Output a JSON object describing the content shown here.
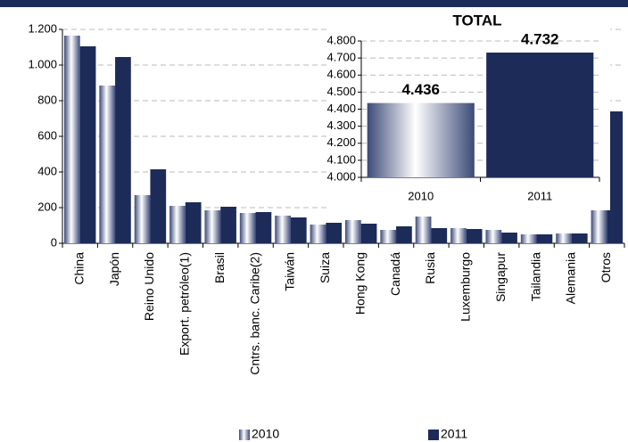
{
  "chart_data": [
    {
      "type": "bar",
      "categories": [
        "China",
        "Japón",
        "Reino Unido",
        "Export. petróleo(1)",
        "Brasil",
        "Cntrs. banc. Caribe(2)",
        "Taiwán",
        "Suiza",
        "Hong Kong",
        "Canadá",
        "Rusia",
        "Luxemburgo",
        "Singapur",
        "Tailandia",
        "Alemania",
        "Otros"
      ],
      "series": [
        {
          "name": "2010",
          "color": "#3c4a78",
          "values": [
            1165,
            885,
            270,
            210,
            185,
            170,
            155,
            105,
            130,
            75,
            150,
            85,
            75,
            50,
            55,
            665
          ]
        },
        {
          "name": "2011",
          "color": "#1c2b58",
          "values": [
            1105,
            1045,
            415,
            230,
            205,
            175,
            145,
            115,
            110,
            95,
            85,
            80,
            60,
            50,
            55,
            740
          ]
        }
      ],
      "ylim": [
        0,
        1200
      ],
      "yticks": [
        0,
        200,
        400,
        600,
        800,
        {
          "value": 1000,
          "label": "1.000"
        },
        {
          "value": 1200,
          "label": "1.200"
        }
      ],
      "grid": true
    },
    {
      "type": "bar",
      "title": "TOTAL",
      "categories": [
        "2010",
        "2011"
      ],
      "values": [
        4436,
        4732
      ],
      "value_labels": [
        "4.436",
        "4.732"
      ],
      "colors": [
        "#3c4a78",
        "#1c2b58"
      ],
      "ylim": [
        4000,
        4800
      ],
      "yticks": [
        {
          "value": 4000,
          "label": "4.000"
        },
        {
          "value": 4100,
          "label": "4.100"
        },
        {
          "value": 4200,
          "label": "4.200"
        },
        {
          "value": 4300,
          "label": "4.300"
        },
        {
          "value": 4400,
          "label": "4.400"
        },
        {
          "value": 4500,
          "label": "4.500"
        },
        {
          "value": 4600,
          "label": "4.600"
        },
        {
          "value": 4700,
          "label": "4.700"
        },
        {
          "value": 4800,
          "label": "4.800"
        }
      ],
      "grid": true
    }
  ]
}
